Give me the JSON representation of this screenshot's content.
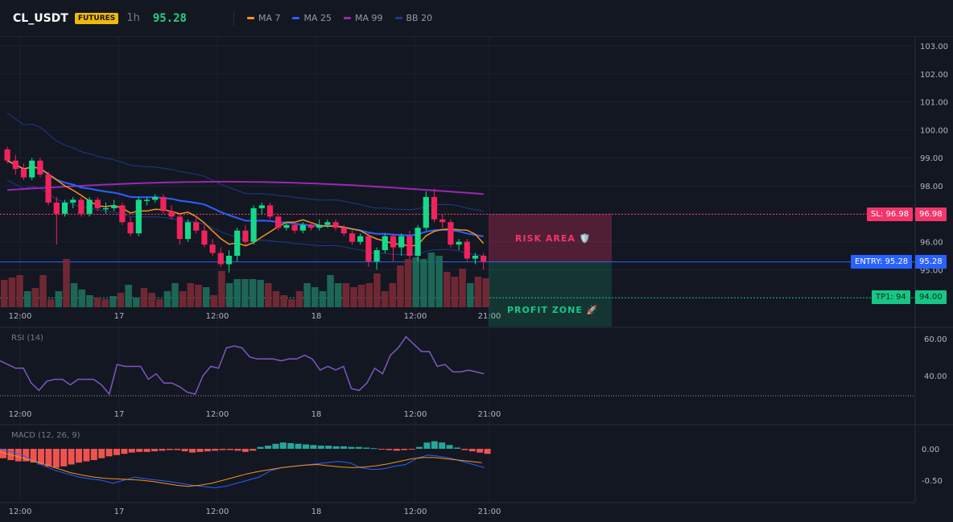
{
  "header": {
    "symbol": "CL_USDT",
    "badge": "FUTURES",
    "timeframe": "1h",
    "price": "95.28",
    "legend": [
      {
        "label": "MA 7",
        "color": "#f7931a"
      },
      {
        "label": "MA 25",
        "color": "#2962ff"
      },
      {
        "label": "MA 99",
        "color": "#9c27b0"
      },
      {
        "label": "BB 20",
        "color": "#1e3a8a"
      }
    ]
  },
  "price_axis": [
    "103.00",
    "102.00",
    "101.00",
    "100.00",
    "99.00",
    "98.00",
    "97.00",
    "96.00",
    "95.00"
  ],
  "time_axis": [
    "12:00",
    "17",
    "12:00",
    "18",
    "12:00",
    "21:00"
  ],
  "levels": {
    "sl": {
      "label": "SL: 96.98",
      "price": "96.98",
      "color": "#f23669"
    },
    "entry": {
      "label": "ENTRY: 95.28",
      "price": "95.28",
      "color": "#2962ff"
    },
    "tp1": {
      "label": "TP1: 94",
      "price": "94.00",
      "color": "#16c784"
    }
  },
  "zones": {
    "risk": "RISK AREA 🛡️",
    "profit": "PROFIT ZONE 🚀"
  },
  "rsi": {
    "title": "RSI (14)",
    "axis": [
      "60.00",
      "40.00"
    ],
    "values": [
      48,
      46,
      44,
      44,
      36,
      32,
      37,
      38,
      38,
      35,
      38,
      38,
      38,
      35,
      30,
      46,
      45,
      45,
      45,
      38,
      41,
      36,
      36,
      34,
      31,
      30,
      40,
      45,
      44,
      55,
      56,
      55,
      50,
      49,
      49,
      49,
      48,
      49,
      49,
      51,
      49,
      43,
      45,
      43,
      45,
      33,
      32,
      36,
      44,
      41,
      51,
      55,
      61,
      57,
      53,
      53,
      45,
      46,
      42,
      42,
      43,
      42,
      41
    ]
  },
  "macd": {
    "title": "MACD (12, 26, 9)",
    "axis": [
      "0.00",
      "-0.50"
    ],
    "hist": [
      -0.15,
      -0.18,
      -0.2,
      -0.2,
      -0.22,
      -0.25,
      -0.28,
      -0.3,
      -0.28,
      -0.25,
      -0.22,
      -0.2,
      -0.18,
      -0.15,
      -0.12,
      -0.1,
      -0.08,
      -0.06,
      -0.05,
      -0.05,
      -0.04,
      -0.03,
      -0.02,
      -0.02,
      -0.04,
      -0.06,
      -0.05,
      -0.04,
      -0.03,
      -0.02,
      -0.02,
      -0.03,
      -0.05,
      -0.03,
      0.03,
      0.05,
      0.08,
      0.1,
      0.09,
      0.08,
      0.07,
      0.06,
      0.05,
      0.05,
      0.04,
      0.04,
      0.03,
      0.03,
      0.02,
      0.01,
      -0.01,
      -0.02,
      -0.03,
      -0.02,
      -0.01,
      0.03,
      0.1,
      0.12,
      0.1,
      0.06,
      0.02,
      -0.02,
      -0.04,
      -0.06,
      -0.08
    ],
    "macd_line": [
      0.0,
      -0.05,
      -0.1,
      -0.2,
      -0.28,
      -0.35,
      -0.4,
      -0.45,
      -0.48,
      -0.5,
      -0.55,
      -0.5,
      -0.45,
      -0.48,
      -0.5,
      -0.52,
      -0.55,
      -0.58,
      -0.6,
      -0.62,
      -0.6,
      -0.55,
      -0.5,
      -0.45,
      -0.35,
      -0.3,
      -0.28,
      -0.26,
      -0.24,
      -0.22,
      -0.2,
      -0.22,
      -0.3,
      -0.33,
      -0.32,
      -0.28,
      -0.25,
      -0.15,
      -0.1,
      -0.12,
      -0.15,
      -0.2,
      -0.25,
      -0.3
    ],
    "signal_line": [
      -0.05,
      -0.1,
      -0.15,
      -0.2,
      -0.26,
      -0.32,
      -0.38,
      -0.42,
      -0.45,
      -0.47,
      -0.48,
      -0.49,
      -0.5,
      -0.52,
      -0.55,
      -0.58,
      -0.6,
      -0.58,
      -0.55,
      -0.5,
      -0.45,
      -0.4,
      -0.36,
      -0.33,
      -0.3,
      -0.28,
      -0.26,
      -0.25,
      -0.27,
      -0.29,
      -0.3,
      -0.29,
      -0.27,
      -0.24,
      -0.2,
      -0.16,
      -0.14,
      -0.14,
      -0.16,
      -0.18,
      -0.2,
      -0.22
    ]
  },
  "candles": [
    [
      99.3,
      98.9,
      99.4,
      98.8
    ],
    [
      98.9,
      98.6,
      99.1,
      98.4
    ],
    [
      98.6,
      98.3,
      98.8,
      98.2
    ],
    [
      98.3,
      98.9,
      99.0,
      98.2
    ],
    [
      98.9,
      98.4,
      99.0,
      98.3
    ],
    [
      98.4,
      97.4,
      98.5,
      97.3
    ],
    [
      97.4,
      97.0,
      97.6,
      95.9
    ],
    [
      97.0,
      97.4,
      97.5,
      96.9
    ],
    [
      97.4,
      97.5,
      97.6,
      97.2
    ],
    [
      97.5,
      97.0,
      97.6,
      96.9
    ],
    [
      97.0,
      97.5,
      97.6,
      96.9
    ],
    [
      97.5,
      97.2,
      97.6,
      97.1
    ],
    [
      97.2,
      97.2,
      97.4,
      97.0
    ],
    [
      97.2,
      97.3,
      97.5,
      97.1
    ],
    [
      97.3,
      96.7,
      97.4,
      96.6
    ],
    [
      96.7,
      96.3,
      96.9,
      96.2
    ],
    [
      96.3,
      97.5,
      97.6,
      96.2
    ],
    [
      97.5,
      97.5,
      97.6,
      97.3
    ],
    [
      97.5,
      97.6,
      97.7,
      97.4
    ],
    [
      97.6,
      97.1,
      97.7,
      97.0
    ],
    [
      97.1,
      96.9,
      97.3,
      96.8
    ],
    [
      96.9,
      96.1,
      97.0,
      95.9
    ],
    [
      96.1,
      96.7,
      96.8,
      96.0
    ],
    [
      96.7,
      96.4,
      96.9,
      96.3
    ],
    [
      96.4,
      95.9,
      96.6,
      95.8
    ],
    [
      95.9,
      95.6,
      96.1,
      95.5
    ],
    [
      95.6,
      95.2,
      95.8,
      95.1
    ],
    [
      95.2,
      95.5,
      95.7,
      94.9
    ],
    [
      95.5,
      96.4,
      96.5,
      95.3
    ],
    [
      96.4,
      96.0,
      96.6,
      95.9
    ],
    [
      96.0,
      97.2,
      97.3,
      95.9
    ],
    [
      97.2,
      97.3,
      97.4,
      97.0
    ],
    [
      97.3,
      96.9,
      97.4,
      96.8
    ],
    [
      96.9,
      96.5,
      97.0,
      96.4
    ],
    [
      96.5,
      96.6,
      96.7,
      96.4
    ],
    [
      96.6,
      96.4,
      96.7,
      96.3
    ],
    [
      96.4,
      96.6,
      96.7,
      96.3
    ],
    [
      96.6,
      96.5,
      96.7,
      96.4
    ],
    [
      96.5,
      96.6,
      96.8,
      96.4
    ],
    [
      96.6,
      96.7,
      96.8,
      96.5
    ],
    [
      96.7,
      96.5,
      96.8,
      96.4
    ],
    [
      96.5,
      96.3,
      96.6,
      96.2
    ],
    [
      96.3,
      96.0,
      96.4,
      95.9
    ],
    [
      96.0,
      96.2,
      96.3,
      95.9
    ],
    [
      96.2,
      95.3,
      96.3,
      95.1
    ],
    [
      95.3,
      95.7,
      95.8,
      95.0
    ],
    [
      95.7,
      96.2,
      96.3,
      95.6
    ],
    [
      96.2,
      95.8,
      96.3,
      95.3
    ],
    [
      95.8,
      96.2,
      96.3,
      95.5
    ],
    [
      96.2,
      95.5,
      96.4,
      95.4
    ],
    [
      95.5,
      96.5,
      96.6,
      95.3
    ],
    [
      96.5,
      97.6,
      97.8,
      96.4
    ],
    [
      97.6,
      96.8,
      97.9,
      96.7
    ],
    [
      96.8,
      96.7,
      97.0,
      96.5
    ],
    [
      96.7,
      95.9,
      96.8,
      95.8
    ],
    [
      95.9,
      96.0,
      96.1,
      95.7
    ],
    [
      96.0,
      95.4,
      96.1,
      95.3
    ],
    [
      95.4,
      95.5,
      95.6,
      95.2
    ],
    [
      95.5,
      95.3,
      95.6,
      95.0
    ]
  ],
  "volume": [
    [
      34,
      "r"
    ],
    [
      37,
      "r"
    ],
    [
      40,
      "r"
    ],
    [
      20,
      "g"
    ],
    [
      24,
      "r"
    ],
    [
      40,
      "r"
    ],
    [
      10,
      "r"
    ],
    [
      20,
      "g"
    ],
    [
      60,
      "r"
    ],
    [
      30,
      "g"
    ],
    [
      22,
      "g"
    ],
    [
      15,
      "g"
    ],
    [
      12,
      "r"
    ],
    [
      10,
      "r"
    ],
    [
      14,
      "g"
    ],
    [
      18,
      "r"
    ],
    [
      28,
      "g"
    ],
    [
      12,
      "g"
    ],
    [
      24,
      "r"
    ],
    [
      18,
      "r"
    ],
    [
      10,
      "r"
    ],
    [
      20,
      "g"
    ],
    [
      30,
      "g"
    ],
    [
      20,
      "r"
    ],
    [
      30,
      "r"
    ],
    [
      28,
      "r"
    ],
    [
      25,
      "g"
    ],
    [
      15,
      "r"
    ],
    [
      45,
      "r"
    ],
    [
      30,
      "g"
    ],
    [
      35,
      "g"
    ],
    [
      35,
      "g"
    ],
    [
      35,
      "g"
    ],
    [
      34,
      "g"
    ],
    [
      30,
      "r"
    ],
    [
      20,
      "r"
    ],
    [
      15,
      "r"
    ],
    [
      10,
      "r"
    ],
    [
      20,
      "r"
    ],
    [
      30,
      "g"
    ],
    [
      25,
      "g"
    ],
    [
      20,
      "g"
    ],
    [
      40,
      "g"
    ],
    [
      30,
      "g"
    ],
    [
      30,
      "r"
    ],
    [
      25,
      "r"
    ],
    [
      28,
      "r"
    ],
    [
      30,
      "r"
    ],
    [
      42,
      "r"
    ],
    [
      20,
      "r"
    ],
    [
      30,
      "r"
    ],
    [
      52,
      "r"
    ],
    [
      60,
      "r"
    ],
    [
      62,
      "g"
    ],
    [
      60,
      "g"
    ],
    [
      68,
      "g"
    ],
    [
      64,
      "g"
    ],
    [
      44,
      "r"
    ],
    [
      38,
      "r"
    ],
    [
      48,
      "r"
    ],
    [
      30,
      "g"
    ],
    [
      38,
      "r"
    ],
    [
      36,
      "r"
    ]
  ]
}
